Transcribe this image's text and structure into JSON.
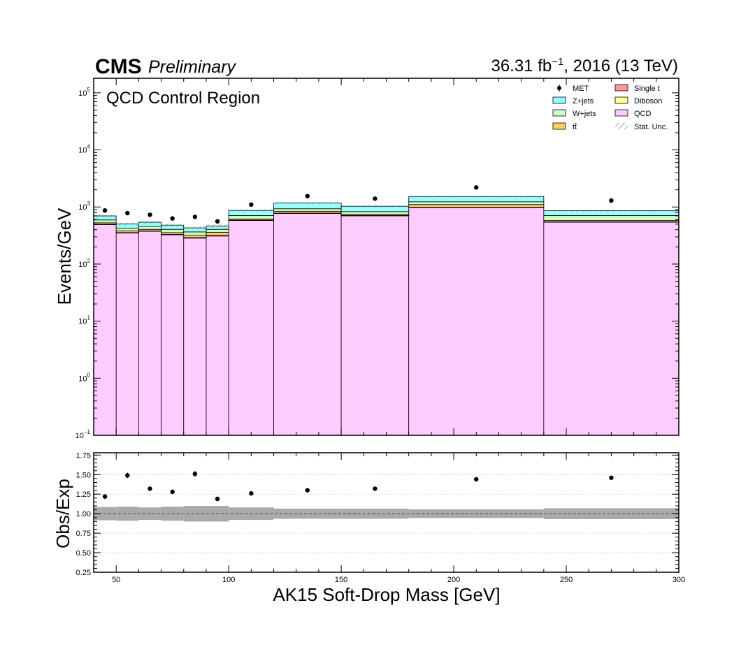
{
  "header": {
    "experiment": "CMS",
    "status": "Preliminary",
    "lumi_prefix": "36.31 fb",
    "lumi_exp": "−1",
    "lumi_suffix": ", 2016 (13 TeV)"
  },
  "chart_data": [
    {
      "panel": "main",
      "type": "stacked-histogram",
      "title": "QCD Control Region",
      "xlabel": "AK15 Soft-Drop Mass [GeV]",
      "ylabel": "Events/GeV",
      "yscale": "log",
      "xlim": [
        40,
        300
      ],
      "ylim": [
        0.1,
        180000
      ],
      "bin_edges": [
        40,
        50,
        60,
        70,
        80,
        90,
        100,
        120,
        150,
        180,
        240,
        300
      ],
      "x_ticks": [
        50,
        100,
        150,
        200,
        250,
        300
      ],
      "y_ticks": [
        {
          "value": 0.1,
          "base": "10",
          "exp": "−1"
        },
        {
          "value": 1,
          "base": "10",
          "exp": "0"
        },
        {
          "value": 10,
          "base": "10",
          "exp": "1"
        },
        {
          "value": 100,
          "base": "10",
          "exp": "2"
        },
        {
          "value": 1000,
          "base": "10",
          "exp": "3"
        },
        {
          "value": 10000,
          "base": "10",
          "exp": "4"
        },
        {
          "value": 100000,
          "base": "10",
          "exp": "5"
        }
      ],
      "stack_order": [
        "QCD",
        "Diboson",
        "Single t",
        "tt̄",
        "W+jets",
        "Z+jets"
      ],
      "series": [
        {
          "name": "QCD",
          "color": "#ffccff",
          "values": [
            490,
            350,
            375,
            325,
            285,
            310,
            580,
            770,
            700,
            980,
            540
          ]
        },
        {
          "name": "Diboson",
          "color": "#ffff99",
          "values": [
            4,
            3,
            3,
            3,
            3,
            3,
            5,
            6,
            5,
            7,
            5
          ]
        },
        {
          "name": "Single t",
          "color": "#ff9999",
          "values": [
            4,
            3,
            3,
            3,
            3,
            3,
            5,
            6,
            5,
            7,
            5
          ]
        },
        {
          "name": "tt̄",
          "color": "#ffcc66",
          "values": [
            30,
            25,
            25,
            25,
            30,
            45,
            25,
            60,
            40,
            110,
            30
          ]
        },
        {
          "name": "W+jets",
          "color": "#ccffcc",
          "values": [
            65,
            45,
            50,
            50,
            45,
            45,
            95,
            90,
            80,
            130,
            130
          ]
        },
        {
          "name": "Z+jets",
          "color": "#99ffff",
          "values": [
            105,
            80,
            85,
            75,
            65,
            60,
            160,
            240,
            200,
            290,
            150
          ]
        }
      ],
      "data": {
        "name": "MET",
        "x": [
          45,
          55,
          65,
          75,
          85,
          95,
          110,
          135,
          165,
          210,
          270
        ],
        "y": [
          870,
          780,
          730,
          630,
          670,
          560,
          1100,
          1550,
          1400,
          2200,
          1300
        ]
      },
      "legend": {
        "placement": "top-right",
        "entries": [
          {
            "label": "MET",
            "kind": "marker"
          },
          {
            "label": "Single t",
            "kind": "fill",
            "color": "#ff9999"
          },
          {
            "label": "Z+jets",
            "kind": "fill",
            "color": "#99ffff"
          },
          {
            "label": "Diboson",
            "kind": "fill",
            "color": "#ffff99"
          },
          {
            "label": "W+jets",
            "kind": "fill",
            "color": "#ccffcc"
          },
          {
            "label": "QCD",
            "kind": "fill",
            "color": "#ffccff"
          },
          {
            "label": "tt̄",
            "kind": "fill",
            "color": "#ffcc66"
          },
          {
            "label": "Stat. Unc.",
            "kind": "hatch"
          }
        ]
      }
    },
    {
      "panel": "ratio",
      "type": "scatter",
      "xlabel": "AK15 Soft-Drop Mass [GeV]",
      "ylabel": "Obs/Exp",
      "xlim": [
        40,
        300
      ],
      "ylim": [
        0.25,
        1.78
      ],
      "y_ticks": [
        "0.25",
        "0.50",
        "0.75",
        "1.00",
        "1.25",
        "1.50",
        "1.75"
      ],
      "reference_line": 1.0,
      "grid": true,
      "bin_edges": [
        40,
        50,
        60,
        70,
        80,
        90,
        100,
        120,
        150,
        180,
        240,
        300
      ],
      "band_halfwidth": [
        0.085,
        0.09,
        0.08,
        0.09,
        0.1,
        0.1,
        0.08,
        0.065,
        0.065,
        0.055,
        0.07
      ],
      "x": [
        45,
        55,
        65,
        75,
        85,
        95,
        110,
        135,
        165,
        210,
        270
      ],
      "y": [
        1.22,
        1.49,
        1.32,
        1.28,
        1.51,
        1.19,
        1.26,
        1.3,
        1.32,
        1.44,
        1.46
      ],
      "yerr": [
        0.03,
        0.035,
        0.03,
        0.03,
        0.035,
        0.03,
        0.02,
        0.015,
        0.015,
        0.01,
        0.015
      ]
    }
  ]
}
